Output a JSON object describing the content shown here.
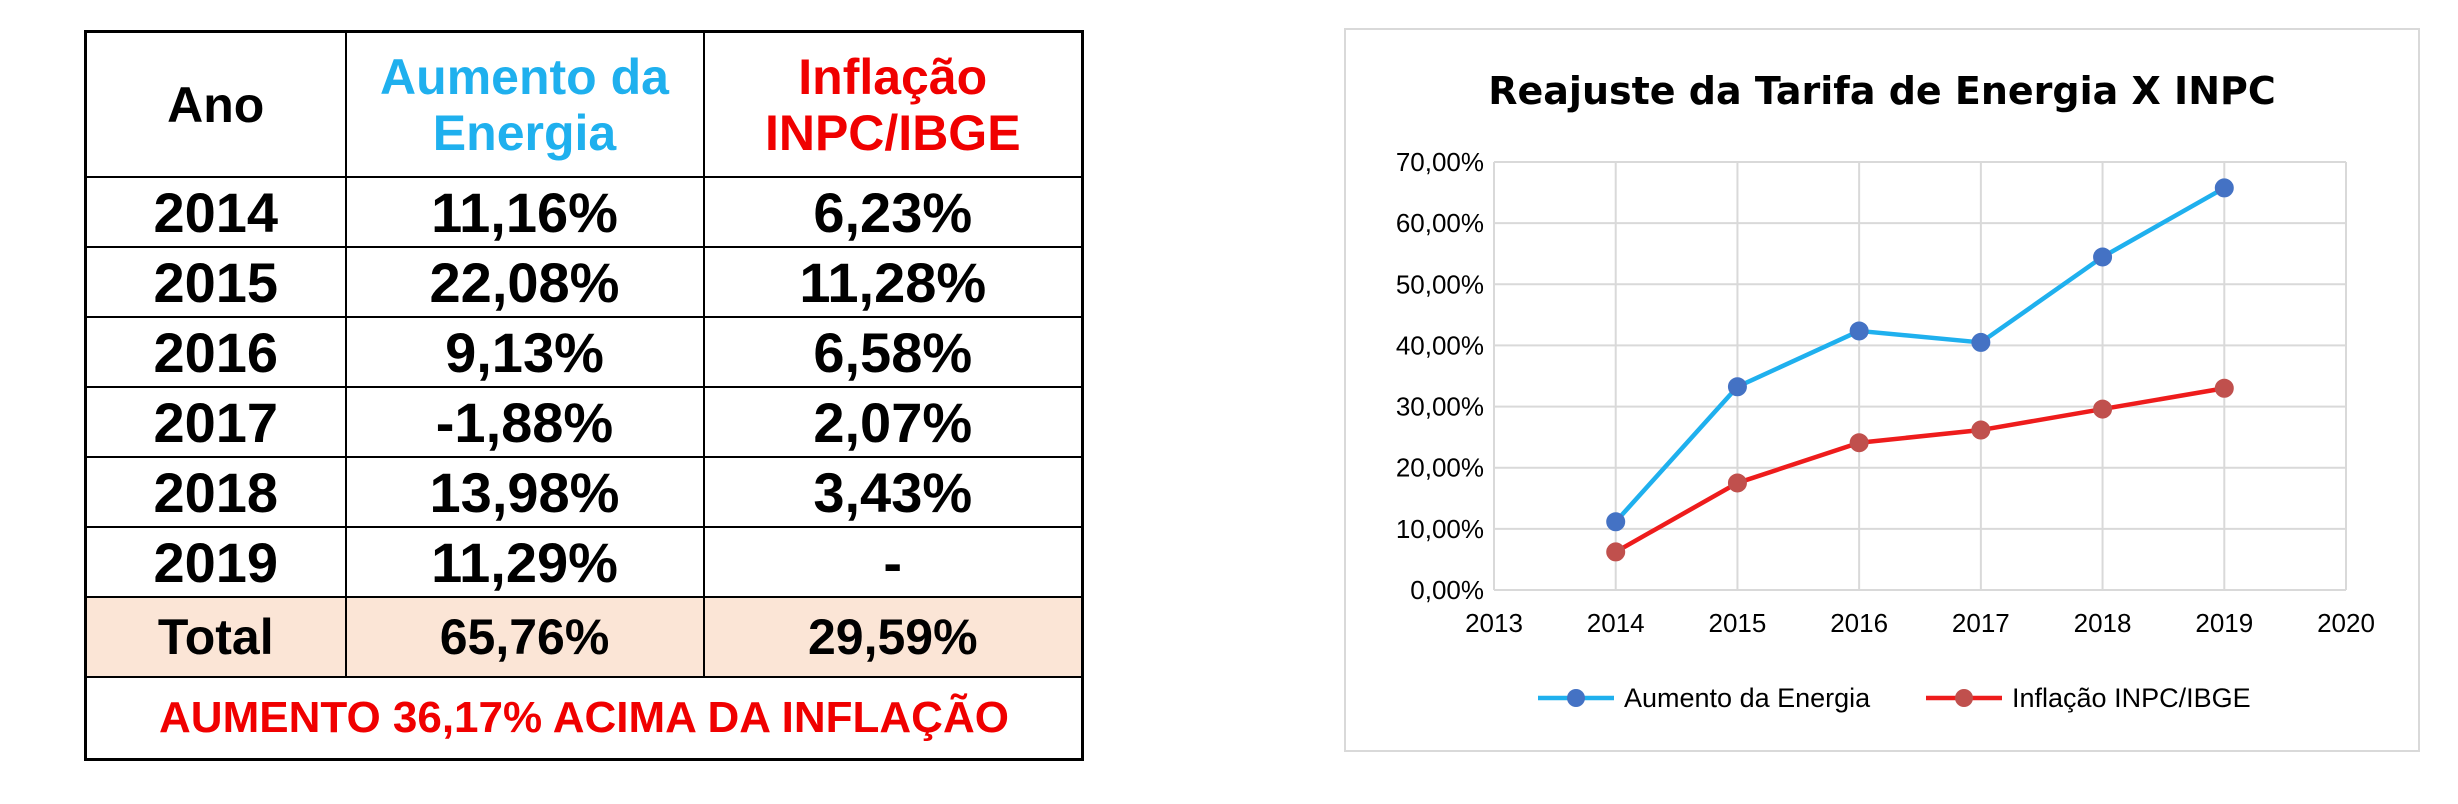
{
  "table": {
    "headers": {
      "year": "Ano",
      "energy_line1": "Aumento da",
      "energy_line2": "Energia",
      "inflation_line1": "Inflação",
      "inflation_line2": "INPC/IBGE"
    },
    "rows": [
      {
        "year": "2014",
        "energy": "11,16%",
        "inflation": "6,23%"
      },
      {
        "year": "2015",
        "energy": "22,08%",
        "inflation": "11,28%"
      },
      {
        "year": "2016",
        "energy": "9,13%",
        "inflation": "6,58%"
      },
      {
        "year": "2017",
        "energy": "-1,88%",
        "inflation": "2,07%"
      },
      {
        "year": "2018",
        "energy": "13,98%",
        "inflation": "3,43%"
      },
      {
        "year": "2019",
        "energy": "11,29%",
        "inflation": "-"
      }
    ],
    "total": {
      "label": "Total",
      "energy": "65,76%",
      "inflation": "29,59%"
    },
    "footer": "AUMENTO 36,17% ACIMA DA INFLAÇÃO"
  },
  "chart_data": {
    "type": "line",
    "title": "Reajuste da Tarifa de Energia X INPC",
    "xlabel": "",
    "ylabel": "",
    "xlim": [
      2013,
      2020
    ],
    "ylim": [
      0,
      70
    ],
    "x_ticks": [
      "2013",
      "2014",
      "2015",
      "2016",
      "2017",
      "2018",
      "2019",
      "2020"
    ],
    "y_ticks": [
      "0,00%",
      "10,00%",
      "20,00%",
      "30,00%",
      "40,00%",
      "50,00%",
      "60,00%",
      "70,00%"
    ],
    "grid": true,
    "legend_position": "bottom",
    "series": [
      {
        "name": "Aumento da Energia",
        "color": "#1fb0ee",
        "marker_color": "#4472c4",
        "x": [
          2014,
          2015,
          2016,
          2017,
          2018,
          2019
        ],
        "values": [
          11.16,
          33.24,
          42.37,
          40.49,
          54.47,
          65.76
        ]
      },
      {
        "name": "Inflação INPC/IBGE",
        "color": "#ee1c1c",
        "marker_color": "#c0504d",
        "x": [
          2014,
          2015,
          2016,
          2017,
          2018,
          2019
        ],
        "values": [
          6.23,
          17.51,
          24.09,
          26.16,
          29.59,
          33.0
        ]
      }
    ]
  }
}
